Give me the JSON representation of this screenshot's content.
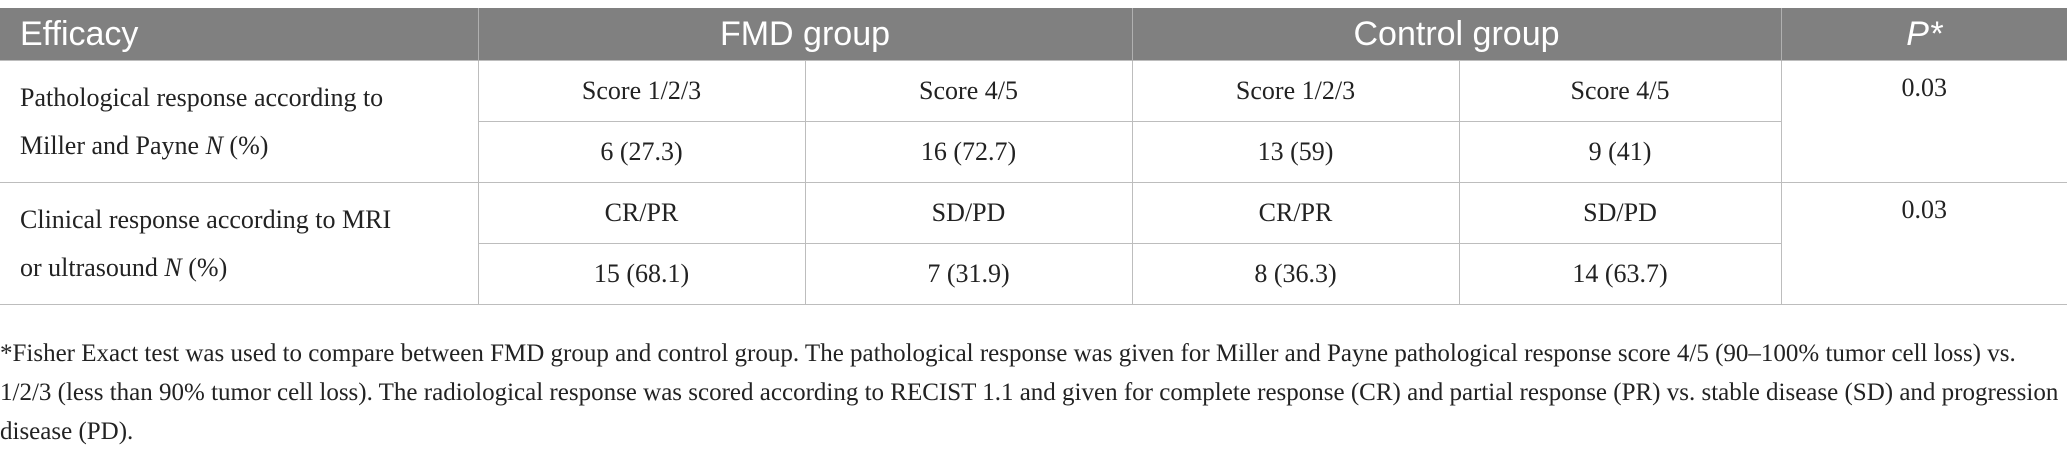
{
  "table": {
    "headers": {
      "efficacy": "Efficacy",
      "fmd": "FMD group",
      "control": "Control group",
      "p": "P*"
    },
    "rows": [
      {
        "label_a": "Pathological response according to",
        "label_b": "Miller and Payne ",
        "label_n": "N",
        "label_pct": " (%)",
        "sub": [
          "Score 1/2/3",
          "Score 4/5",
          "Score 1/2/3",
          "Score 4/5"
        ],
        "values": [
          "6 (27.3)",
          "16 (72.7)",
          "13 (59)",
          "9 (41)"
        ],
        "p": "0.03"
      },
      {
        "label_a": "Clinical response according to MRI",
        "label_b": "or ultrasound ",
        "label_n": "N",
        "label_pct": " (%)",
        "sub": [
          "CR/PR",
          "SD/PD",
          "CR/PR",
          "SD/PD"
        ],
        "values": [
          "15 (68.1)",
          "7 (31.9)",
          "8 (36.3)",
          "14 (63.7)"
        ],
        "p": "0.03"
      }
    ]
  },
  "footnote": "*Fisher Exact test was used to compare between FMD group and control group. The pathological response was given for Miller and Payne pathological response score 4/5 (90–100% tumor cell loss) vs. 1/2/3 (less than 90% tumor cell loss). The radiological response was scored according to RECIST 1.1 and given for complete response (CR) and partial response (PR) vs. stable disease (SD) and progression disease (PD)."
}
